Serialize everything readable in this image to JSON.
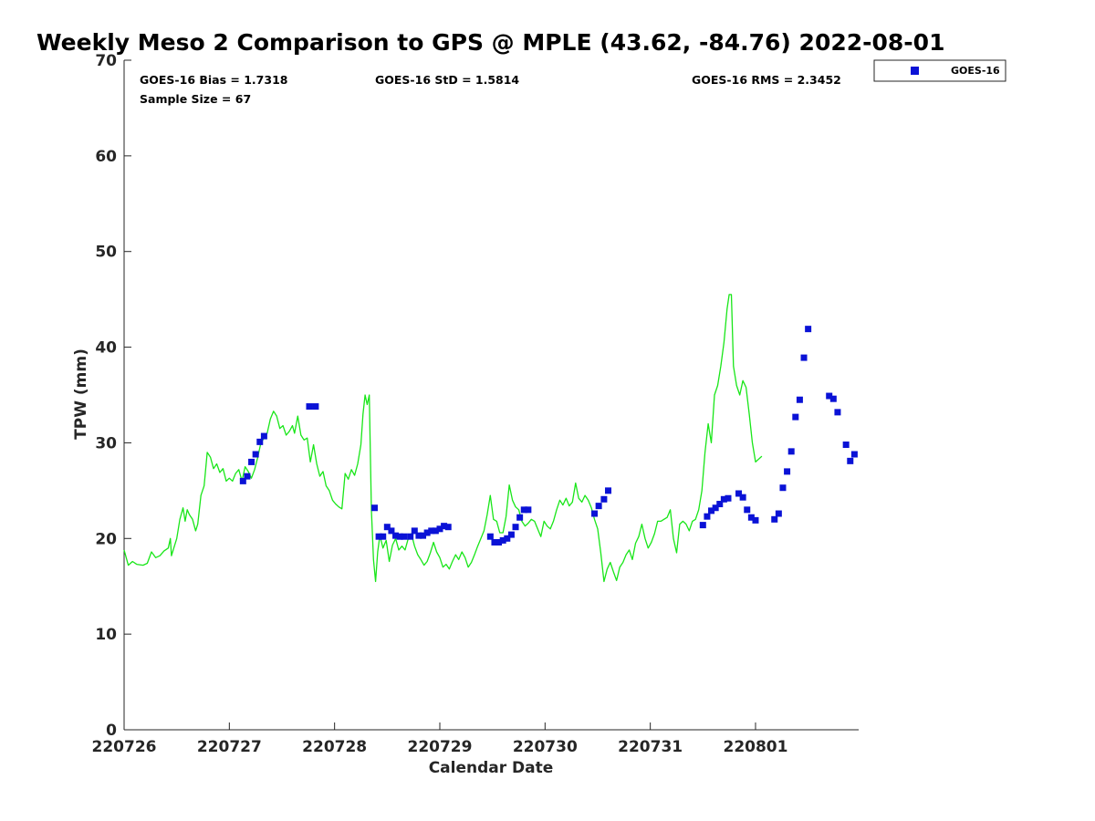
{
  "chart_data": {
    "type": "scatter",
    "title": "Weekly Meso 2 Comparison to GPS @ MPLE (43.62, -84.76) 2022-08-01",
    "xlabel": "Calendar Date",
    "ylabel": "TPW (mm)",
    "xlim": [
      0,
      6.98
    ],
    "ylim": [
      0,
      70
    ],
    "x_unit": "days since 220726",
    "x_tick_values": [
      0,
      1,
      2,
      3,
      4,
      5,
      6
    ],
    "x_tick_labels": [
      "220726",
      "220727",
      "220728",
      "220729",
      "220730",
      "220731",
      "220801"
    ],
    "y_tick_values": [
      0,
      10,
      20,
      30,
      40,
      50,
      60,
      70
    ],
    "y_tick_labels": [
      "0",
      "10",
      "20",
      "30",
      "40",
      "50",
      "60",
      "70"
    ],
    "stats": {
      "bias": "GOES-16 Bias = 1.7318",
      "std": "GOES-16 StD = 1.5814",
      "rms": "GOES-16 RMS = 2.3452",
      "sample": "Sample Size = 67"
    },
    "legend": {
      "position": "top-right (outside)",
      "entries": [
        "GOES-16"
      ]
    },
    "colors": {
      "goes": "#0a12d6",
      "gps": "#19e619",
      "axis": "#262626"
    },
    "series": [
      {
        "name": "GPS",
        "style": "line",
        "points": [
          [
            0.0,
            18.8
          ],
          [
            0.04,
            17.2
          ],
          [
            0.08,
            17.6
          ],
          [
            0.12,
            17.3
          ],
          [
            0.18,
            17.2
          ],
          [
            0.22,
            17.4
          ],
          [
            0.26,
            18.6
          ],
          [
            0.3,
            18.0
          ],
          [
            0.34,
            18.2
          ],
          [
            0.38,
            18.7
          ],
          [
            0.42,
            19.0
          ],
          [
            0.44,
            20.0
          ],
          [
            0.45,
            18.2
          ],
          [
            0.5,
            20.0
          ],
          [
            0.53,
            22.0
          ],
          [
            0.56,
            23.2
          ],
          [
            0.58,
            21.8
          ],
          [
            0.6,
            23.0
          ],
          [
            0.62,
            22.5
          ],
          [
            0.65,
            22.0
          ],
          [
            0.68,
            20.8
          ],
          [
            0.7,
            21.5
          ],
          [
            0.73,
            24.5
          ],
          [
            0.76,
            25.5
          ],
          [
            0.79,
            29.0
          ],
          [
            0.82,
            28.5
          ],
          [
            0.85,
            27.3
          ],
          [
            0.88,
            27.8
          ],
          [
            0.91,
            26.9
          ],
          [
            0.94,
            27.3
          ],
          [
            0.97,
            26.0
          ],
          [
            1.0,
            26.3
          ],
          [
            1.03,
            26.0
          ],
          [
            1.06,
            26.8
          ],
          [
            1.09,
            27.2
          ],
          [
            1.12,
            26.0
          ],
          [
            1.15,
            27.5
          ],
          [
            1.18,
            27.0
          ],
          [
            1.21,
            26.3
          ],
          [
            1.24,
            27.2
          ],
          [
            1.27,
            28.5
          ],
          [
            1.3,
            30.0
          ],
          [
            1.33,
            30.5
          ],
          [
            1.36,
            31.0
          ],
          [
            1.39,
            32.5
          ],
          [
            1.42,
            33.3
          ],
          [
            1.45,
            32.8
          ],
          [
            1.48,
            31.5
          ],
          [
            1.51,
            31.8
          ],
          [
            1.54,
            30.8
          ],
          [
            1.57,
            31.2
          ],
          [
            1.6,
            31.8
          ],
          [
            1.62,
            31.0
          ],
          [
            1.65,
            32.8
          ],
          [
            1.68,
            30.8
          ],
          [
            1.71,
            30.3
          ],
          [
            1.74,
            30.5
          ],
          [
            1.77,
            28.0
          ],
          [
            1.8,
            29.8
          ],
          [
            1.83,
            27.8
          ],
          [
            1.86,
            26.5
          ],
          [
            1.89,
            27.0
          ],
          [
            1.92,
            25.5
          ],
          [
            1.95,
            25.0
          ],
          [
            1.98,
            24.0
          ],
          [
            2.01,
            23.6
          ],
          [
            2.04,
            23.3
          ],
          [
            2.07,
            23.1
          ],
          [
            2.1,
            26.8
          ],
          [
            2.13,
            26.2
          ],
          [
            2.16,
            27.2
          ],
          [
            2.19,
            26.6
          ],
          [
            2.22,
            27.8
          ],
          [
            2.25,
            29.8
          ],
          [
            2.27,
            33.0
          ],
          [
            2.29,
            35.0
          ],
          [
            2.31,
            34.0
          ],
          [
            2.33,
            35.0
          ],
          [
            2.35,
            23.0
          ],
          [
            2.37,
            17.8
          ],
          [
            2.39,
            15.5
          ],
          [
            2.41,
            18.6
          ],
          [
            2.43,
            20.3
          ],
          [
            2.46,
            19.0
          ],
          [
            2.49,
            19.8
          ],
          [
            2.52,
            17.6
          ],
          [
            2.55,
            19.3
          ],
          [
            2.58,
            20.0
          ],
          [
            2.61,
            18.8
          ],
          [
            2.64,
            19.2
          ],
          [
            2.67,
            18.8
          ],
          [
            2.7,
            20.0
          ],
          [
            2.73,
            20.5
          ],
          [
            2.76,
            19.2
          ],
          [
            2.79,
            18.3
          ],
          [
            2.82,
            17.8
          ],
          [
            2.85,
            17.2
          ],
          [
            2.88,
            17.6
          ],
          [
            2.91,
            18.5
          ],
          [
            2.94,
            19.6
          ],
          [
            2.97,
            18.6
          ],
          [
            3.0,
            18.0
          ],
          [
            3.03,
            17.0
          ],
          [
            3.06,
            17.3
          ],
          [
            3.09,
            16.8
          ],
          [
            3.12,
            17.6
          ],
          [
            3.15,
            18.3
          ],
          [
            3.18,
            17.8
          ],
          [
            3.21,
            18.6
          ],
          [
            3.24,
            18.0
          ],
          [
            3.27,
            17.0
          ],
          [
            3.3,
            17.5
          ],
          [
            3.33,
            18.3
          ],
          [
            3.36,
            19.2
          ],
          [
            3.39,
            20.0
          ],
          [
            3.42,
            20.8
          ],
          [
            3.45,
            22.5
          ],
          [
            3.48,
            24.5
          ],
          [
            3.51,
            22.0
          ],
          [
            3.54,
            21.8
          ],
          [
            3.57,
            20.6
          ],
          [
            3.6,
            20.6
          ],
          [
            3.63,
            22.3
          ],
          [
            3.66,
            25.6
          ],
          [
            3.69,
            24.0
          ],
          [
            3.72,
            23.3
          ],
          [
            3.75,
            23.0
          ],
          [
            3.78,
            21.8
          ],
          [
            3.81,
            21.3
          ],
          [
            3.84,
            21.6
          ],
          [
            3.87,
            22.0
          ],
          [
            3.9,
            21.8
          ],
          [
            3.93,
            21.0
          ],
          [
            3.96,
            20.2
          ],
          [
            3.99,
            21.8
          ],
          [
            4.02,
            21.3
          ],
          [
            4.05,
            21.0
          ],
          [
            4.08,
            21.8
          ],
          [
            4.11,
            23.0
          ],
          [
            4.14,
            24.0
          ],
          [
            4.17,
            23.5
          ],
          [
            4.2,
            24.2
          ],
          [
            4.23,
            23.4
          ],
          [
            4.26,
            23.8
          ],
          [
            4.29,
            25.8
          ],
          [
            4.32,
            24.2
          ],
          [
            4.35,
            23.8
          ],
          [
            4.38,
            24.5
          ],
          [
            4.41,
            24.0
          ],
          [
            4.44,
            23.2
          ],
          [
            4.47,
            22.0
          ],
          [
            4.5,
            21.0
          ],
          [
            4.53,
            18.5
          ],
          [
            4.56,
            15.5
          ],
          [
            4.59,
            16.8
          ],
          [
            4.62,
            17.5
          ],
          [
            4.65,
            16.5
          ],
          [
            4.68,
            15.6
          ],
          [
            4.71,
            17.0
          ],
          [
            4.74,
            17.5
          ],
          [
            4.77,
            18.3
          ],
          [
            4.8,
            18.8
          ],
          [
            4.83,
            17.8
          ],
          [
            4.86,
            19.5
          ],
          [
            4.89,
            20.2
          ],
          [
            4.92,
            21.5
          ],
          [
            4.95,
            20.0
          ],
          [
            4.98,
            19.0
          ],
          [
            5.01,
            19.6
          ],
          [
            5.04,
            20.5
          ],
          [
            5.07,
            21.8
          ],
          [
            5.1,
            21.8
          ],
          [
            5.13,
            22.0
          ],
          [
            5.16,
            22.2
          ],
          [
            5.19,
            23.0
          ],
          [
            5.22,
            20.0
          ],
          [
            5.25,
            18.5
          ],
          [
            5.28,
            21.5
          ],
          [
            5.31,
            21.8
          ],
          [
            5.34,
            21.5
          ],
          [
            5.37,
            20.8
          ],
          [
            5.4,
            21.8
          ],
          [
            5.43,
            22.0
          ],
          [
            5.46,
            23.0
          ],
          [
            5.49,
            25.0
          ],
          [
            5.52,
            29.0
          ],
          [
            5.55,
            32.0
          ],
          [
            5.58,
            30.0
          ],
          [
            5.61,
            35.0
          ],
          [
            5.64,
            36.0
          ],
          [
            5.67,
            38.0
          ],
          [
            5.7,
            40.5
          ],
          [
            5.73,
            44.0
          ],
          [
            5.75,
            45.5
          ],
          [
            5.77,
            45.5
          ],
          [
            5.79,
            38.0
          ],
          [
            5.82,
            36.0
          ],
          [
            5.85,
            35.0
          ],
          [
            5.88,
            36.5
          ],
          [
            5.91,
            35.8
          ],
          [
            5.94,
            33.0
          ],
          [
            5.97,
            30.0
          ],
          [
            6.0,
            28.0
          ],
          [
            6.03,
            28.3
          ],
          [
            6.06,
            28.6
          ]
        ]
      },
      {
        "name": "GOES-16",
        "style": "marker",
        "points": [
          [
            1.13,
            26.0
          ],
          [
            1.17,
            26.5
          ],
          [
            1.21,
            28.0
          ],
          [
            1.25,
            28.8
          ],
          [
            1.29,
            30.1
          ],
          [
            1.33,
            30.7
          ],
          [
            1.76,
            33.8
          ],
          [
            1.82,
            33.8
          ],
          [
            2.38,
            23.2
          ],
          [
            2.42,
            20.2
          ],
          [
            2.46,
            20.2
          ],
          [
            2.5,
            21.2
          ],
          [
            2.54,
            20.8
          ],
          [
            2.58,
            20.3
          ],
          [
            2.62,
            20.2
          ],
          [
            2.66,
            20.2
          ],
          [
            2.72,
            20.2
          ],
          [
            2.76,
            20.8
          ],
          [
            2.8,
            20.3
          ],
          [
            2.84,
            20.3
          ],
          [
            2.88,
            20.6
          ],
          [
            2.92,
            20.8
          ],
          [
            2.96,
            20.8
          ],
          [
            3.0,
            21.0
          ],
          [
            3.04,
            21.3
          ],
          [
            3.08,
            21.2
          ],
          [
            3.48,
            20.2
          ],
          [
            3.52,
            19.6
          ],
          [
            3.56,
            19.6
          ],
          [
            3.6,
            19.8
          ],
          [
            3.64,
            20.0
          ],
          [
            3.68,
            20.4
          ],
          [
            3.72,
            21.2
          ],
          [
            3.76,
            22.2
          ],
          [
            3.8,
            23.0
          ],
          [
            3.84,
            23.0
          ],
          [
            4.47,
            22.6
          ],
          [
            4.51,
            23.4
          ],
          [
            4.56,
            24.1
          ],
          [
            4.6,
            25.0
          ],
          [
            5.5,
            21.4
          ],
          [
            5.54,
            22.3
          ],
          [
            5.58,
            22.9
          ],
          [
            5.62,
            23.2
          ],
          [
            5.66,
            23.6
          ],
          [
            5.7,
            24.1
          ],
          [
            5.74,
            24.2
          ],
          [
            5.84,
            24.7
          ],
          [
            5.88,
            24.3
          ],
          [
            5.92,
            23.0
          ],
          [
            5.96,
            22.2
          ],
          [
            6.0,
            21.9
          ],
          [
            6.18,
            22.0
          ],
          [
            6.22,
            22.6
          ],
          [
            6.26,
            25.3
          ],
          [
            6.3,
            27.0
          ],
          [
            6.34,
            29.1
          ],
          [
            6.38,
            32.7
          ],
          [
            6.42,
            34.5
          ],
          [
            6.46,
            38.9
          ],
          [
            6.5,
            41.9
          ],
          [
            6.7,
            34.9
          ],
          [
            6.74,
            34.6
          ],
          [
            6.78,
            33.2
          ],
          [
            6.86,
            29.8
          ],
          [
            6.9,
            28.1
          ],
          [
            6.94,
            28.8
          ]
        ]
      }
    ]
  }
}
